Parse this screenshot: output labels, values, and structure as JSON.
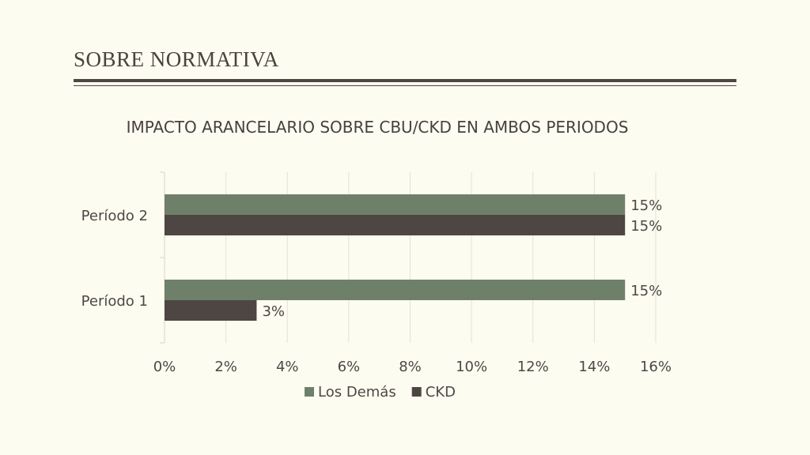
{
  "slide": {
    "title": "SOBRE NORMATIVA"
  },
  "colors": {
    "background": "#fdfcf0",
    "los_demas": "#6f806a",
    "ckd": "#4e4643",
    "text": "#4a4340"
  },
  "chart_data": {
    "type": "bar",
    "orientation": "horizontal",
    "title": "IMPACTO ARANCELARIO SOBRE CBU/CKD EN AMBOS PERIODOS",
    "categories": [
      "Período  1",
      "Período  2"
    ],
    "series": [
      {
        "name": "Los  Demás",
        "values": [
          15,
          15
        ],
        "labels": [
          "15%",
          "15%"
        ]
      },
      {
        "name": "CKD",
        "values": [
          3,
          15
        ],
        "labels": [
          "3%",
          "15%"
        ]
      }
    ],
    "x_ticks": [
      "0%",
      "2%",
      "4%",
      "6%",
      "8%",
      "10%",
      "12%",
      "14%",
      "16%"
    ],
    "xlim": [
      0,
      16
    ],
    "grid": "vertical",
    "legend": "bottom"
  }
}
